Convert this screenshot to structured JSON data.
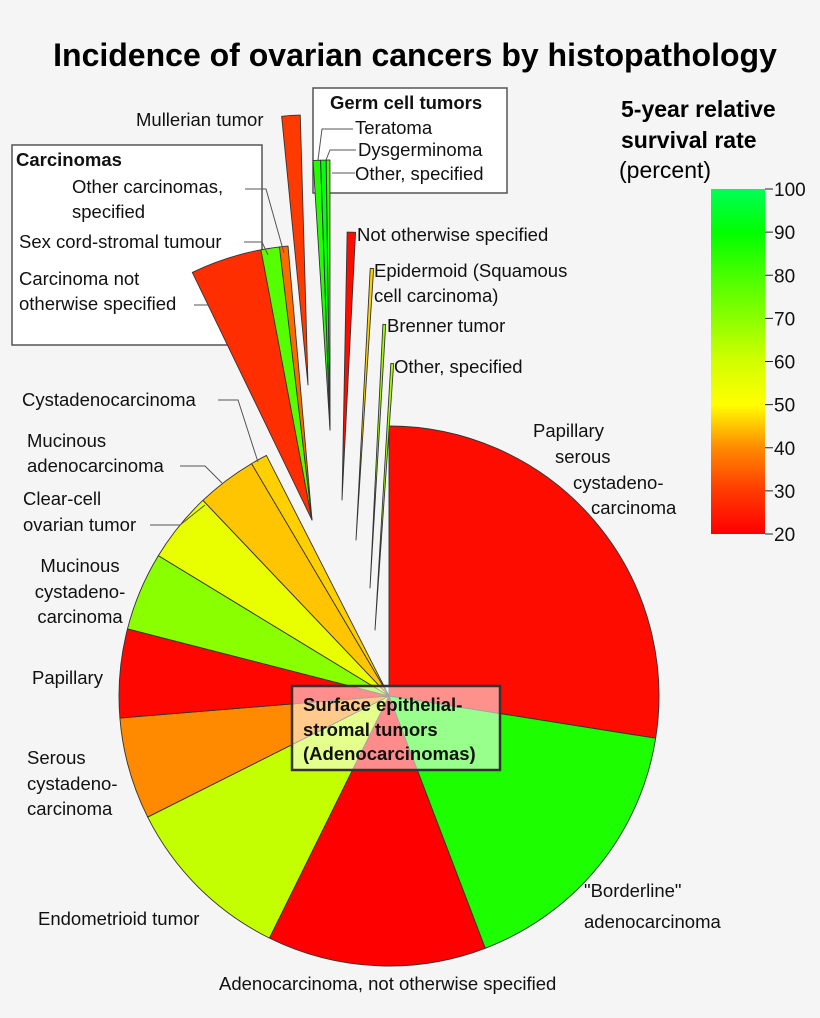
{
  "chart_data": {
    "type": "pie",
    "title": "Incidence of ovarian cancers by histopathology",
    "colorbar": {
      "title_lines": [
        "5-year relative",
        "survival rate"
      ],
      "unit": "(percent)",
      "range": [
        20,
        100
      ],
      "ticks": [
        "100",
        "90",
        "80",
        "70",
        "60",
        "50",
        "40",
        "30",
        "20"
      ],
      "tick_values": [
        100,
        90,
        80,
        70,
        60,
        50,
        40,
        30,
        20
      ],
      "stops": [
        {
          "value": 20,
          "color": "#ff0000"
        },
        {
          "value": 30,
          "color": "#ff3a00"
        },
        {
          "value": 40,
          "color": "#ff8a00"
        },
        {
          "value": 50,
          "color": "#ffff00"
        },
        {
          "value": 60,
          "color": "#d2ff00"
        },
        {
          "value": 70,
          "color": "#8aff00"
        },
        {
          "value": 80,
          "color": "#48ff00"
        },
        {
          "value": 90,
          "color": "#00ff00"
        },
        {
          "value": 100,
          "color": "#00ff55"
        }
      ]
    },
    "groups": {
      "surface": [
        "Surface epithelial-",
        "stromal tumors",
        "(Adenocarcinomas)"
      ],
      "carcinomas": "Carcinomas",
      "germ": "Germ cell tumors"
    },
    "slices": [
      {
        "label_lines": [
          "Papillary",
          "serous",
          "cystadeno-",
          "carcinoma"
        ],
        "value": 27.5,
        "survival": 22,
        "group": "surface"
      },
      {
        "label_lines": [
          "\"Borderline\"",
          "adenocarcinoma"
        ],
        "value": 16.7,
        "survival": 86,
        "group": "surface"
      },
      {
        "label_lines": [
          "Adenocarcinoma, not otherwise specified"
        ],
        "value": 13.1,
        "survival": 20,
        "group": "surface"
      },
      {
        "label_lines": [
          "Endometrioid tumor"
        ],
        "value": 10.3,
        "survival": 62,
        "group": "surface"
      },
      {
        "label_lines": [
          "Serous",
          "cystadeno-",
          "carcinoma"
        ],
        "value": 6.1,
        "survival": 40,
        "group": "surface"
      },
      {
        "label_lines": [
          "Papillary"
        ],
        "value": 5.3,
        "survival": 21,
        "group": "surface"
      },
      {
        "label_lines": [
          "Mucinous",
          "cystadeno-",
          "carcinoma"
        ],
        "value": 4.7,
        "survival": 70,
        "group": "surface"
      },
      {
        "label_lines": [
          "Clear-cell",
          "ovarian tumor"
        ],
        "value": 4.2,
        "survival": 55,
        "group": "surface"
      },
      {
        "label_lines": [
          "Mucinous",
          "adenocarcinoma"
        ],
        "value": 3.6,
        "survival": 45,
        "group": "surface"
      },
      {
        "label_lines": [
          "Cystadenocarcinoma"
        ],
        "value": 1.0,
        "survival": 46,
        "group": "surface"
      },
      {
        "label_lines": [
          "Carcinoma not",
          "otherwise specified"
        ],
        "value": 4.2,
        "survival": 28,
        "group": "carcinomas"
      },
      {
        "label_lines": [
          "Sex cord-stromal tumour"
        ],
        "value": 1.1,
        "survival": 78,
        "group": "carcinomas"
      },
      {
        "label_lines": [
          "Other carcinomas,",
          "specified"
        ],
        "value": 0.5,
        "survival": 36,
        "group": "carcinomas"
      },
      {
        "label_lines": [
          "Mullerian tumor"
        ],
        "value": 1.1,
        "survival": 30,
        "group": ""
      },
      {
        "label_lines": [
          "Teratoma"
        ],
        "value": 0.44,
        "survival": 85,
        "group": "germ"
      },
      {
        "label_lines": [
          "Dysgerminoma"
        ],
        "value": 0.33,
        "survival": 92,
        "group": "germ"
      },
      {
        "label_lines": [
          "Other, specified"
        ],
        "value": 0.22,
        "survival": 82,
        "group": "germ"
      },
      {
        "label_lines": [
          "Not otherwise specified"
        ],
        "value": 0.5,
        "survival": 22,
        "group": ""
      },
      {
        "label_lines": [
          "Epidermoid (Squamous",
          "cell carcinoma)"
        ],
        "value": 0.2,
        "survival": 46,
        "group": ""
      },
      {
        "label_lines": [
          "Brenner tumor"
        ],
        "value": 0.17,
        "survival": 67,
        "group": ""
      },
      {
        "label_lines": [
          "Other, specified"
        ],
        "value": 0.17,
        "survival": 66,
        "group": ""
      }
    ]
  }
}
